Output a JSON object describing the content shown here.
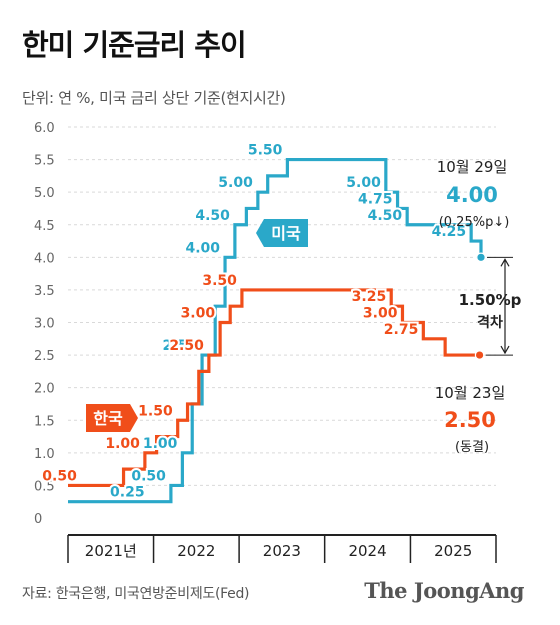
{
  "title": "한미 기준금리 추이",
  "subtitle": "단위: 연 %, 미국 금리 상단 기준(현지시간)",
  "source": "자료: 한국은행, 미국연방준비제도(Fed)",
  "brand": "The JoongAng",
  "colors": {
    "us": "#2aa8c9",
    "korea": "#f04e1a",
    "grid": "#d9d9d9",
    "axis": "#222222"
  },
  "chart_data": {
    "type": "line",
    "step": true,
    "ylim": [
      0,
      6.0
    ],
    "yticks": [
      "0",
      "0.5",
      "1.0",
      "1.5",
      "2.0",
      "2.5",
      "3.0",
      "3.5",
      "4.0",
      "4.5",
      "5.0",
      "5.5",
      "6.0"
    ],
    "grid": "horizontal",
    "xlim": [
      "2021-01-01",
      "2025-12-31"
    ],
    "years": [
      "2021년",
      "2022",
      "2023",
      "2024",
      "2025"
    ],
    "series": [
      {
        "name": "미국",
        "color": "#2aa8c9",
        "steps": [
          [
            "2021-01-01",
            0.25
          ],
          [
            "2022-03-16",
            0.5
          ],
          [
            "2022-05-04",
            1.0
          ],
          [
            "2022-06-15",
            1.75
          ],
          [
            "2022-07-27",
            2.5
          ],
          [
            "2022-09-21",
            3.25
          ],
          [
            "2022-11-02",
            4.0
          ],
          [
            "2022-12-14",
            4.5
          ],
          [
            "2023-02-01",
            4.75
          ],
          [
            "2023-03-22",
            5.0
          ],
          [
            "2023-05-03",
            5.25
          ],
          [
            "2023-07-26",
            5.5
          ],
          [
            "2024-09-18",
            5.0
          ],
          [
            "2024-11-07",
            4.75
          ],
          [
            "2024-12-18",
            4.5
          ],
          [
            "2025-09-17",
            4.25
          ],
          [
            "2025-10-29",
            4.0
          ]
        ],
        "labels": [
          {
            "date": "2021-12-15",
            "value": 0.25,
            "text": "0.25"
          },
          {
            "date": "2022-03-16",
            "value": 0.5,
            "text": "0.50"
          },
          {
            "date": "2022-05-04",
            "value": 1.0,
            "text": "1.00"
          },
          {
            "date": "2022-07-27",
            "value": 2.5,
            "text": "2.50"
          },
          {
            "date": "2022-11-02",
            "value": 4.0,
            "text": "4.00"
          },
          {
            "date": "2022-12-14",
            "value": 4.5,
            "text": "4.50"
          },
          {
            "date": "2023-03-22",
            "value": 5.0,
            "text": "5.00"
          },
          {
            "date": "2023-07-26",
            "value": 5.5,
            "text": "5.50"
          },
          {
            "date": "2024-09-18",
            "value": 5.0,
            "text": "5.00"
          },
          {
            "date": "2024-11-07",
            "value": 4.75,
            "text": "4.75"
          },
          {
            "date": "2024-12-18",
            "value": 4.5,
            "text": "4.50"
          },
          {
            "date": "2025-09-17",
            "value": 4.25,
            "text": "4.25"
          }
        ]
      },
      {
        "name": "한국",
        "color": "#f04e1a",
        "steps": [
          [
            "2021-01-01",
            0.5
          ],
          [
            "2021-08-26",
            0.75
          ],
          [
            "2021-11-25",
            1.0
          ],
          [
            "2022-01-14",
            1.25
          ],
          [
            "2022-04-14",
            1.5
          ],
          [
            "2022-05-26",
            1.75
          ],
          [
            "2022-07-13",
            2.25
          ],
          [
            "2022-08-25",
            2.5
          ],
          [
            "2022-10-12",
            3.0
          ],
          [
            "2022-11-24",
            3.25
          ],
          [
            "2023-01-13",
            3.5
          ],
          [
            "2024-10-11",
            3.25
          ],
          [
            "2024-11-28",
            3.0
          ],
          [
            "2025-02-25",
            2.75
          ],
          [
            "2025-05-29",
            2.5
          ],
          [
            "2025-10-23",
            2.5
          ]
        ],
        "labels": [
          {
            "date": "2021-03-01",
            "value": 0.5,
            "text": "0.50"
          },
          {
            "date": "2021-11-25",
            "value": 1.0,
            "text": "1.00"
          },
          {
            "date": "2022-04-14",
            "value": 1.5,
            "text": "1.50"
          },
          {
            "date": "2022-08-25",
            "value": 2.5,
            "text": "2.50"
          },
          {
            "date": "2022-10-12",
            "value": 3.0,
            "text": "3.00"
          },
          {
            "date": "2023-01-13",
            "value": 3.5,
            "text": "3.50"
          },
          {
            "date": "2024-10-11",
            "value": 3.25,
            "text": "3.25"
          },
          {
            "date": "2024-11-28",
            "value": 3.0,
            "text": "3.00"
          },
          {
            "date": "2025-02-25",
            "value": 2.75,
            "text": "2.75"
          }
        ]
      }
    ],
    "annotations": {
      "us_end": {
        "date_text": "10월 29일",
        "value_text": "4.00",
        "note": "(0.25%p↓)"
      },
      "kr_end": {
        "date_text": "10월 23일",
        "value_text": "2.50",
        "note": "(동결)"
      },
      "gap": {
        "line1": "1.50%p",
        "line2": "격차"
      }
    }
  }
}
